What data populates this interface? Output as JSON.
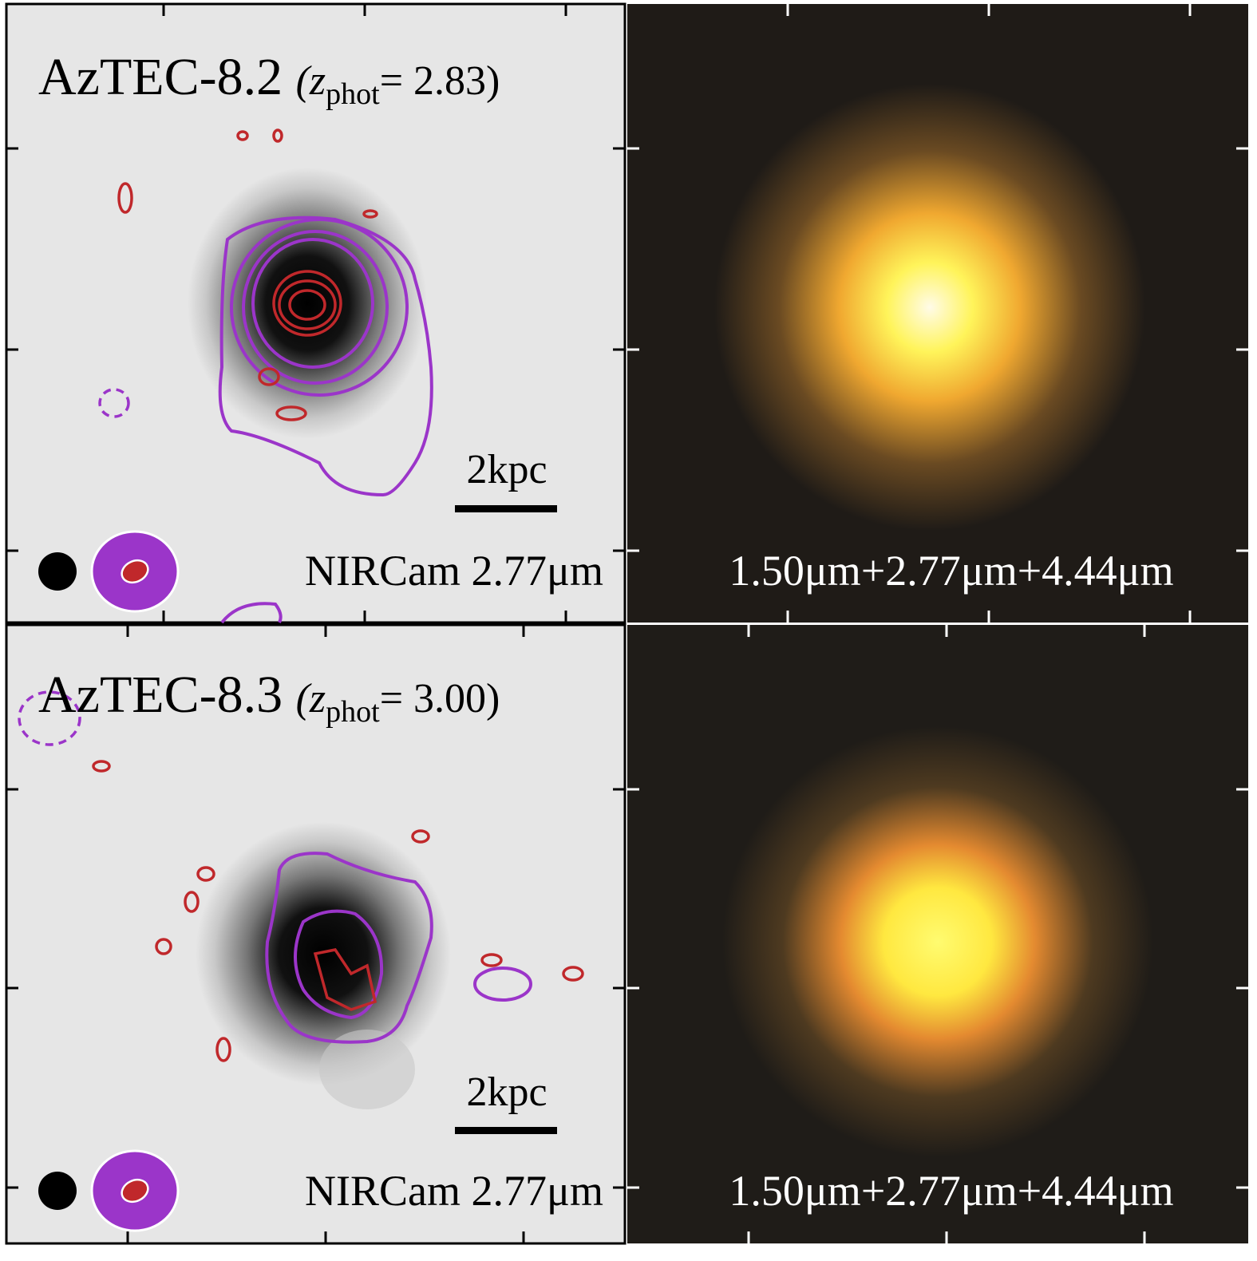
{
  "panels": [
    {
      "name": "AzTEC-8.2",
      "z_open": "(z",
      "z_sub": "phot",
      "z_close": "= 2.83)",
      "scale_bar": "2kpc",
      "band": "NIRCam 2.77μm",
      "rgb": "1.50μm+2.77μm+4.44μm"
    },
    {
      "name": "AzTEC-8.3",
      "z_open": "(z",
      "z_sub": "phot",
      "z_close": "= 3.00)",
      "scale_bar": "2kpc",
      "band": "NIRCam 2.77μm",
      "rgb": "1.50μm+2.77μm+4.44μm"
    }
  ]
}
